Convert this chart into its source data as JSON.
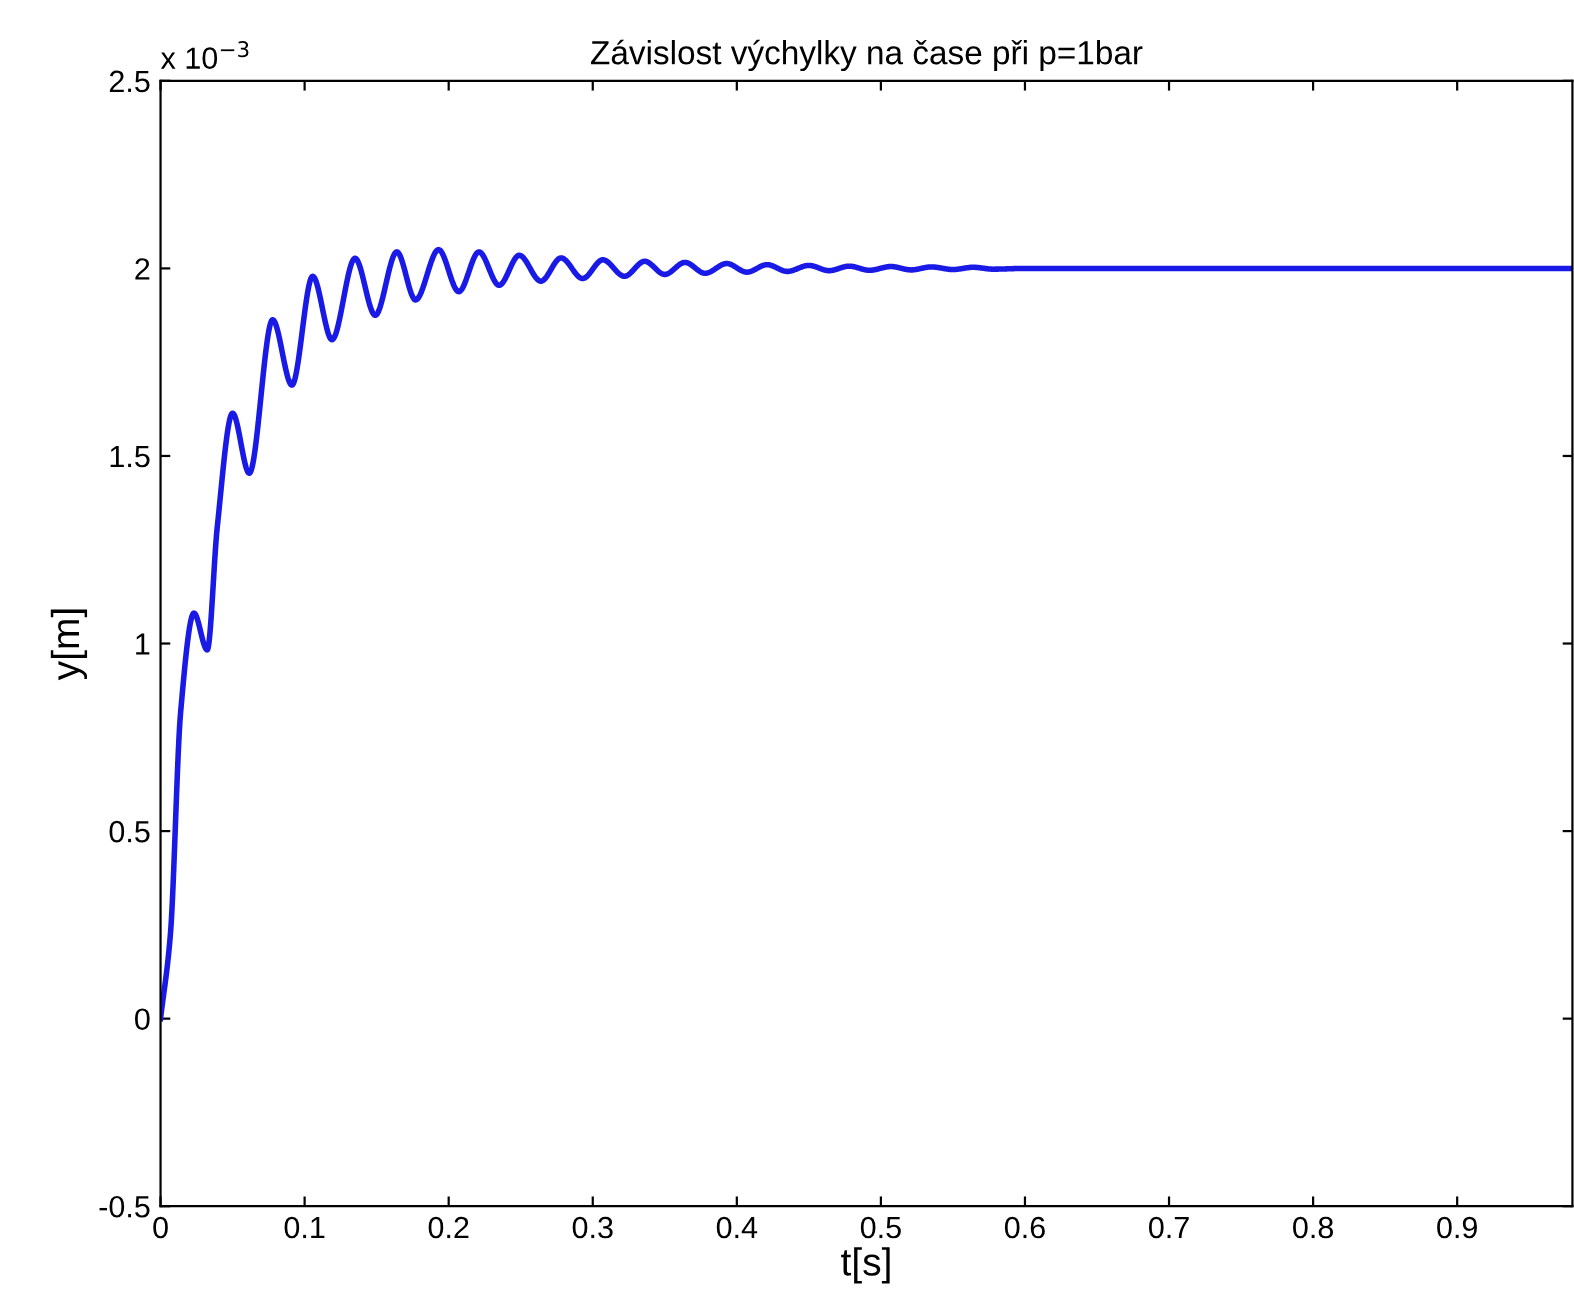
{
  "chart_data": {
    "type": "line",
    "title": "Závislost výchylky na čase při p=1bar",
    "xlabel": "t[s]",
    "ylabel": "y[m]",
    "annotations": [
      "x 10$^{−3}$"
    ],
    "xlim": [
      0,
      0.98
    ],
    "xticks": [
      0,
      0.1,
      0.2,
      0.3,
      0.4,
      0.5,
      0.6,
      0.7,
      0.8,
      0.9
    ],
    "ylim": [
      -0.5,
      2.5
    ],
    "yticks": [
      -0.5,
      0,
      0.5,
      1,
      1.5,
      2,
      2.5
    ],
    "grid": false,
    "legend": false,
    "marker": "none",
    "line_style": "solid",
    "series": [
      {
        "color": "#1a1ae6",
        "x": [
          0,
          0.0069,
          0.0139,
          0.0232,
          0.0324,
          0.0394,
          0.05,
          0.0616,
          0.0778,
          0.0912,
          0.1056,
          0.119,
          0.135,
          0.149,
          0.164,
          0.177,
          0.193,
          0.207,
          0.221,
          0.235,
          0.249,
          0.264,
          0.278,
          0.293,
          0.307,
          0.322,
          0.336,
          0.35,
          0.364,
          0.378,
          0.393,
          0.407,
          0.421,
          0.435,
          0.45,
          0.464,
          0.478,
          0.492,
          0.507,
          0.521,
          0.535,
          0.55,
          0.564,
          0.578,
          0.6,
          0.7,
          0.8,
          0.9,
          0.98
        ],
        "values": [
          0,
          0.228,
          0.815,
          1.081,
          0.983,
          1.312,
          1.614,
          1.454,
          1.863,
          1.689,
          1.979,
          1.81,
          2.027,
          1.875,
          2.044,
          1.916,
          2.05,
          1.938,
          2.044,
          1.955,
          2.035,
          1.966,
          2.028,
          1.973,
          2.023,
          1.979,
          2.019,
          1.984,
          2.016,
          1.987,
          2.013,
          1.99,
          2.01,
          1.992,
          2.008,
          1.994,
          2.006,
          1.995,
          2.005,
          1.996,
          2.004,
          1.997,
          2.003,
          1.998,
          2.0,
          2.0,
          2.0,
          2.0,
          2.0
        ]
      }
    ]
  }
}
